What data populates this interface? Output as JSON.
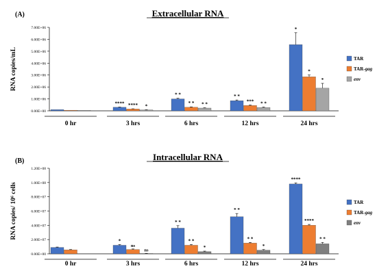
{
  "chart_data": [
    {
      "type": "bar",
      "panel_label": "(A)",
      "title": "Extracellular RNA",
      "xlabel": "",
      "ylabel": "RNA copies/mL",
      "ylim": [
        0,
        7000000
      ],
      "yticks": [
        "0.00E+00",
        "1.00E+06",
        "2.00E+06",
        "3.00E+06",
        "4.00E+06",
        "5.00E+06",
        "6.00E+06",
        "7.00E+06"
      ],
      "categories": [
        "0 hr",
        "3 hrs",
        "6 hrs",
        "12 hrs",
        "24 hrs"
      ],
      "legend_position": "right",
      "series": [
        {
          "name": "TAR",
          "color": "#4472c4",
          "values": [
            100000,
            300000,
            1000000,
            850000,
            5550000
          ],
          "errors": [
            0,
            20000,
            50000,
            60000,
            1000000
          ],
          "labels": [
            "",
            "****",
            "* *",
            "* *",
            "*"
          ]
        },
        {
          "name": "TAR-gag",
          "color": "#ed7d31",
          "values": [
            50000,
            150000,
            300000,
            450000,
            2850000
          ],
          "errors": [
            0,
            20000,
            30000,
            40000,
            150000
          ],
          "labels": [
            "",
            "****",
            "* *",
            "***",
            "*"
          ]
        },
        {
          "name": "env",
          "color": "#a5a5a5",
          "values": [
            40000,
            80000,
            230000,
            280000,
            1900000
          ],
          "errors": [
            0,
            10000,
            30000,
            40000,
            400000
          ],
          "labels": [
            "",
            "*",
            "* *",
            "* *",
            "*"
          ]
        }
      ]
    },
    {
      "type": "bar",
      "panel_label": "(B)",
      "title": "Intracellular RNA",
      "xlabel": "",
      "ylabel": "RNA copies/ 10⁶ cells",
      "ylim": [
        0,
        120000000
      ],
      "yticks": [
        "0.00E+00",
        "2.00E+07",
        "4.00E+07",
        "6.00E+07",
        "8.00E+07",
        "1.00E+08",
        "1.20E+08"
      ],
      "categories": [
        "0 hr",
        "3 hrs",
        "6 hrs",
        "12 hrs",
        "24 hrs"
      ],
      "legend_position": "right",
      "series": [
        {
          "name": "TAR",
          "color": "#4472c4",
          "values": [
            9000000,
            12000000,
            36000000,
            52000000,
            98000000
          ],
          "errors": [
            500000,
            1000000,
            3500000,
            4500000,
            1500000
          ],
          "labels": [
            "",
            "*",
            "* *",
            "* *",
            "****"
          ]
        },
        {
          "name": "TAR-gag",
          "color": "#ed7d31",
          "values": [
            5500000,
            6000000,
            12000000,
            15000000,
            40000000
          ],
          "errors": [
            500000,
            800000,
            1000000,
            1000000,
            1200000
          ],
          "labels": [
            "",
            "ns",
            "* *",
            "* *",
            "****"
          ]
        },
        {
          "name": "env",
          "color": "#7f7f7f",
          "values": [
            0,
            500000,
            3000000,
            5000000,
            14000000
          ],
          "errors": [
            0,
            200000,
            800000,
            1000000,
            2000000
          ],
          "labels": [
            "",
            "ns",
            "*",
            "*",
            "* *"
          ]
        }
      ]
    }
  ]
}
